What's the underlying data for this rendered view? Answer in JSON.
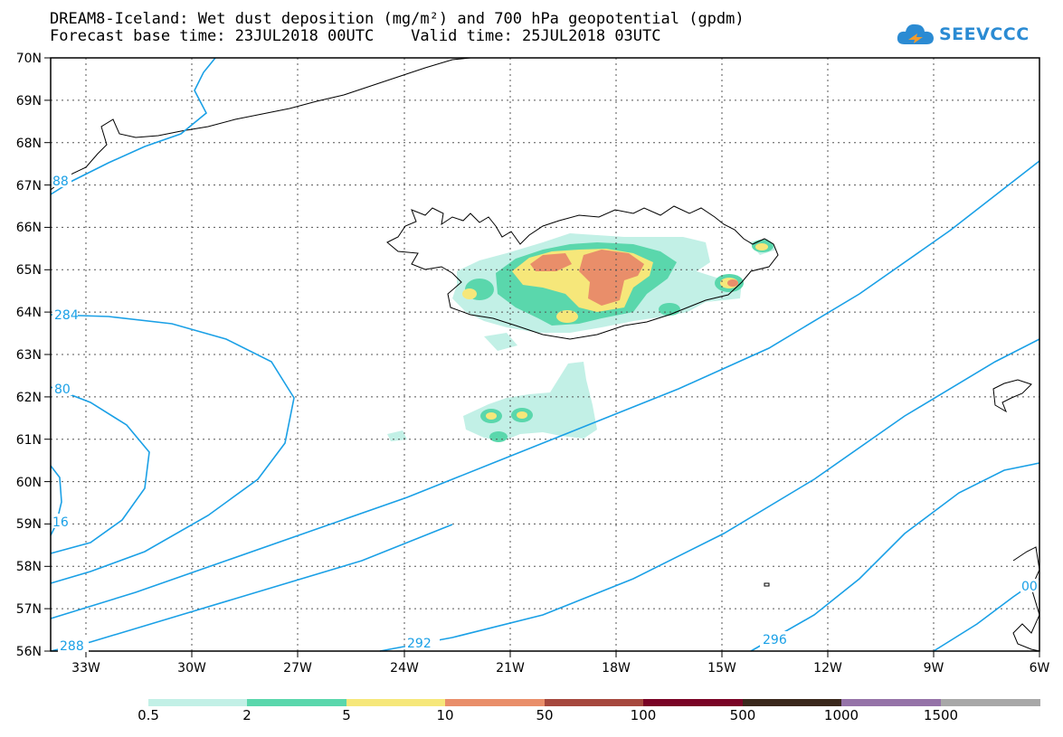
{
  "title": {
    "line1": "DREAM8-Iceland: Wet dust deposition (mg/m²) and 700 hPa geopotential (gpdm)",
    "line2": "Forecast base time: 23JUL2018 00UTC    Valid time: 25JUL2018 03UTC"
  },
  "logo": {
    "text": "SEEVCCC",
    "icon": "cloud-icon",
    "color": "#2b8bd3"
  },
  "map": {
    "lat_labels": [
      "70N",
      "69N",
      "68N",
      "67N",
      "66N",
      "65N",
      "64N",
      "63N",
      "62N",
      "61N",
      "60N",
      "59N",
      "58N",
      "57N",
      "56N"
    ],
    "lon_labels": [
      "33W",
      "30W",
      "27W",
      "24W",
      "21W",
      "18W",
      "15W",
      "12W",
      "9W",
      "6W"
    ],
    "contour_color": "#1aa0e6",
    "contour_labels": [
      "284",
      "80",
      "16",
      "288",
      "292",
      "296",
      "88",
      "00"
    ]
  },
  "legend": {
    "labels": [
      "0.5",
      "2",
      "5",
      "10",
      "50",
      "100",
      "500",
      "1000",
      "1500"
    ],
    "colors": [
      "#c2f0e6",
      "#5ad7ac",
      "#f6e77a",
      "#e98e6a",
      "#a6483e",
      "#7a0426",
      "#3a281c",
      "#9573a8",
      "#a8a8a8"
    ]
  }
}
